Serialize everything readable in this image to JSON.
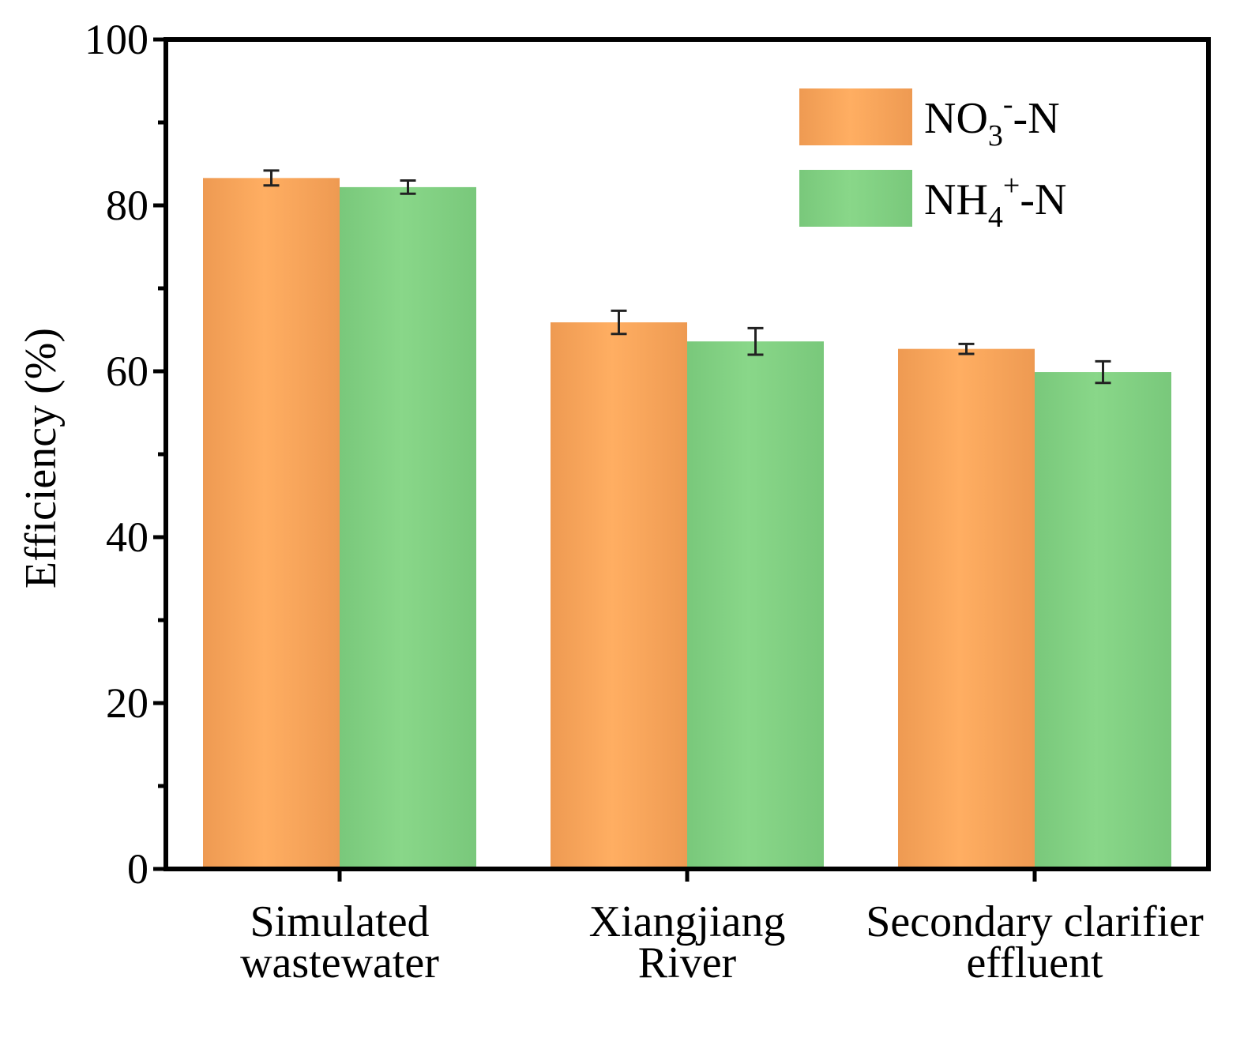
{
  "chart_data": {
    "type": "bar",
    "title": "",
    "ylabel": "Efficiency (%)",
    "xlabel": "",
    "ylim": [
      0,
      100
    ],
    "yticks": [
      0,
      20,
      40,
      60,
      80,
      100
    ],
    "yticks_minor": [
      10,
      30,
      50,
      70,
      90
    ],
    "grid": false,
    "legend_placement": "top-right",
    "categories": [
      [
        "Simulated",
        "wastewater"
      ],
      [
        "Xiangjiang",
        "River"
      ],
      [
        "Secondary clarifier",
        "effluent"
      ]
    ],
    "series": [
      {
        "name": "NO3−-N",
        "legend_main": "NO",
        "legend_sub": "3",
        "legend_sup": "-",
        "legend_tail": "-N",
        "color": "#F5A55A",
        "values": [
          83.3,
          65.9,
          62.7
        ],
        "errors": [
          0.9,
          1.4,
          0.6
        ]
      },
      {
        "name": "NH4+-N",
        "legend_main": "NH",
        "legend_sub": "4",
        "legend_sup": "+",
        "legend_tail": "-N",
        "color": "#84CF84",
        "values": [
          82.2,
          63.6,
          59.9
        ],
        "errors": [
          0.8,
          1.6,
          1.3
        ]
      }
    ]
  }
}
